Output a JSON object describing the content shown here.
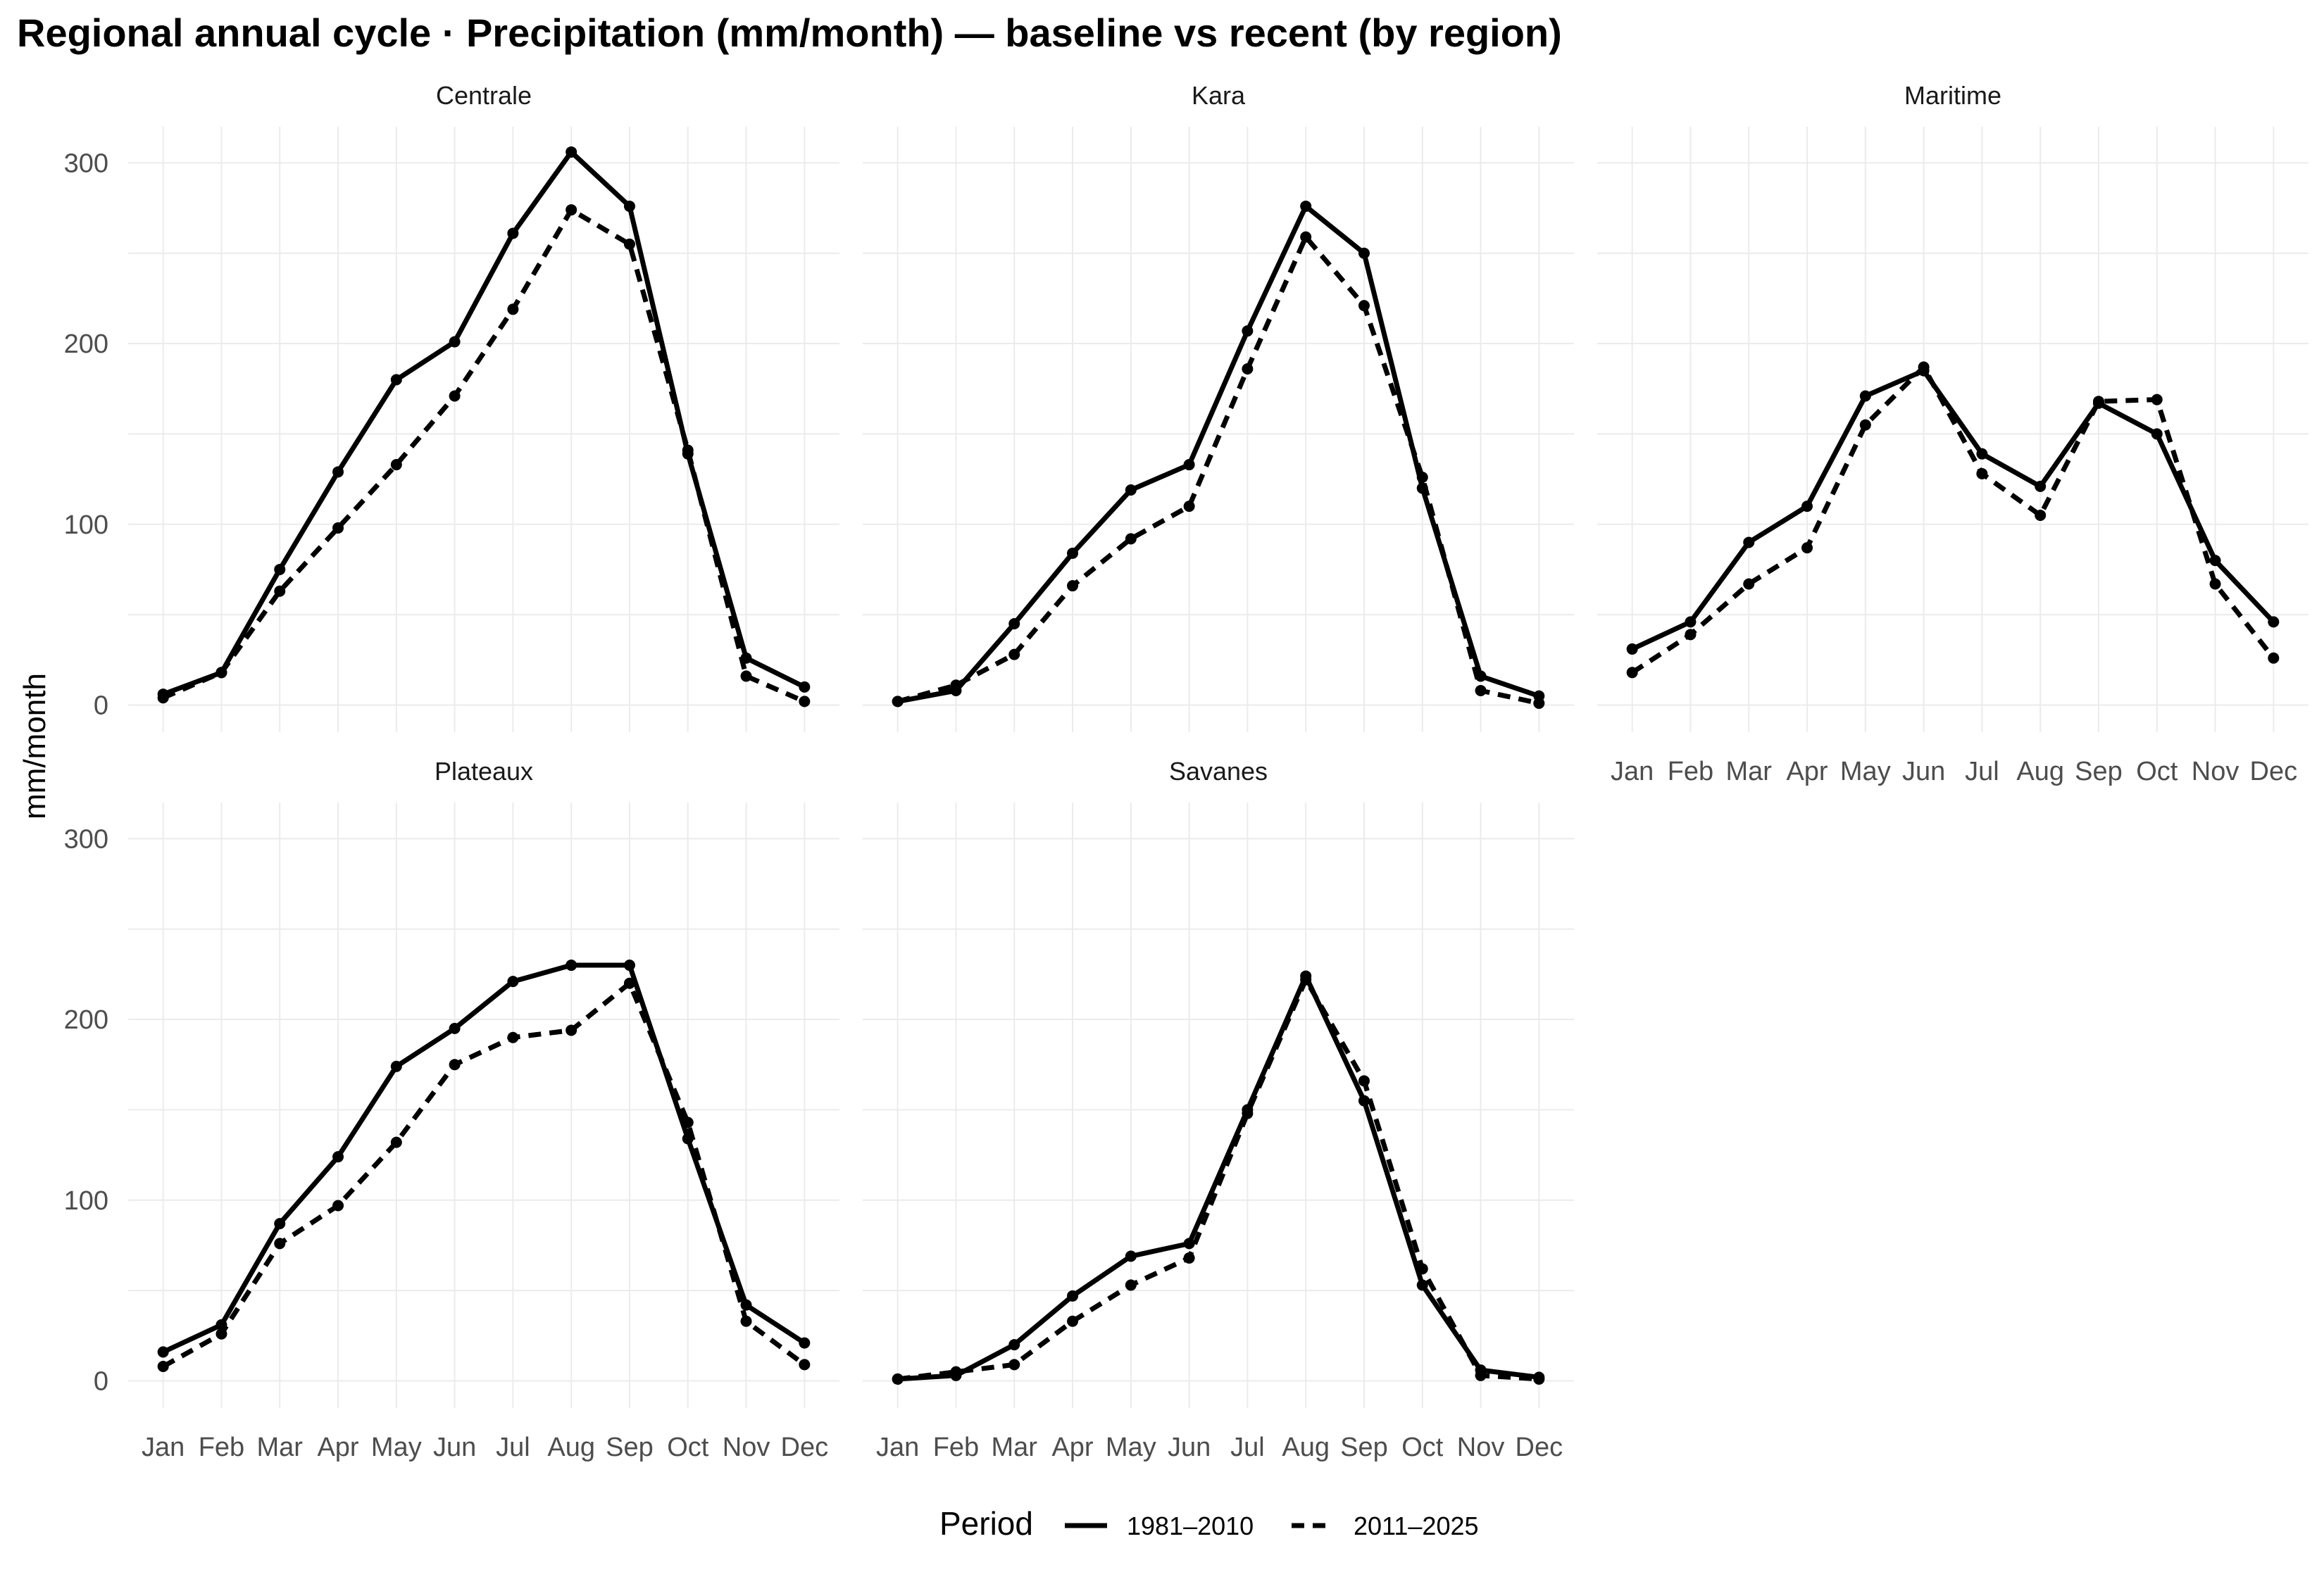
{
  "chart_data": {
    "type": "line",
    "title": "Regional annual cycle · Precipitation (mm/month) — baseline vs recent (by region)",
    "ylabel": "mm/month",
    "xlabel": "",
    "ylim": [
      -15,
      320
    ],
    "y_ticks": [
      0,
      100,
      200,
      300
    ],
    "x": [
      "Jan",
      "Feb",
      "Mar",
      "Apr",
      "May",
      "Jun",
      "Jul",
      "Aug",
      "Sep",
      "Oct",
      "Nov",
      "Dec"
    ],
    "legend": {
      "title": "Period",
      "position": "bottom",
      "entries": [
        {
          "label": "1981–2010",
          "dash": "solid"
        },
        {
          "label": "2011–2025",
          "dash": "dashed"
        }
      ]
    },
    "grid": true,
    "panels": [
      {
        "name": "Centrale",
        "series": [
          {
            "name": "1981–2010",
            "values": [
              6,
              18,
              75,
              129,
              180,
              201,
              261,
              306,
              276,
              139,
              26,
              10
            ]
          },
          {
            "name": "2011–2025",
            "values": [
              4,
              18,
              63,
              98,
              133,
              171,
              219,
              274,
              255,
              141,
              16,
              2
            ]
          }
        ]
      },
      {
        "name": "Kara",
        "series": [
          {
            "name": "1981–2010",
            "values": [
              2,
              8,
              45,
              84,
              119,
              133,
              207,
              276,
              250,
              120,
              16,
              5
            ]
          },
          {
            "name": "2011–2025",
            "values": [
              2,
              11,
              28,
              66,
              92,
              110,
              186,
              259,
              221,
              126,
              8,
              1
            ]
          }
        ]
      },
      {
        "name": "Maritime",
        "series": [
          {
            "name": "1981–2010",
            "values": [
              31,
              46,
              90,
              110,
              171,
              185,
              139,
              121,
              167,
              150,
              80,
              46
            ]
          },
          {
            "name": "2011–2025",
            "values": [
              18,
              39,
              67,
              87,
              155,
              187,
              128,
              105,
              168,
              169,
              67,
              26
            ]
          }
        ]
      },
      {
        "name": "Plateaux",
        "series": [
          {
            "name": "1981–2010",
            "values": [
              16,
              31,
              87,
              124,
              174,
              195,
              221,
              230,
              230,
              134,
              42,
              21
            ]
          },
          {
            "name": "2011–2025",
            "values": [
              8,
              26,
              76,
              97,
              132,
              175,
              190,
              194,
              220,
              143,
              33,
              9
            ]
          }
        ]
      },
      {
        "name": "Savanes",
        "series": [
          {
            "name": "1981–2010",
            "values": [
              1,
              3,
              20,
              47,
              69,
              76,
              150,
              224,
              155,
              53,
              6,
              2
            ]
          },
          {
            "name": "2011–2025",
            "values": [
              1,
              5,
              9,
              33,
              53,
              68,
              148,
              222,
              166,
              62,
              3,
              1
            ]
          }
        ]
      }
    ]
  }
}
